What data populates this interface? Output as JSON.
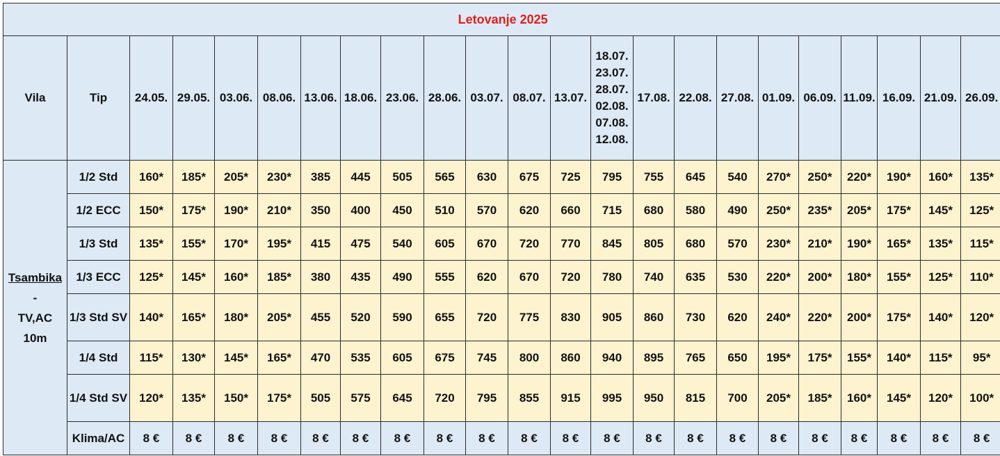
{
  "title": "Letovanje 2025",
  "headers": {
    "villa": "Vila",
    "type": "Tip",
    "dates": [
      [
        "24.05."
      ],
      [
        "29.05."
      ],
      [
        "03.06."
      ],
      [
        "08.06."
      ],
      [
        "13.06."
      ],
      [
        "18.06."
      ],
      [
        "23.06."
      ],
      [
        "28.06."
      ],
      [
        "03.07."
      ],
      [
        "08.07."
      ],
      [
        "13.07."
      ],
      [
        "18.07.",
        "23.07.",
        "28.07.",
        "02.08.",
        "07.08.",
        "12.08."
      ],
      [
        "17.08."
      ],
      [
        "22.08."
      ],
      [
        "27.08."
      ],
      [
        "01.09."
      ],
      [
        "06.09."
      ],
      [
        "11.09."
      ],
      [
        "16.09."
      ],
      [
        "21.09."
      ],
      [
        "26.09."
      ]
    ]
  },
  "villa": {
    "name": "Tsambika",
    "separator": "-",
    "amenities": "TV,AC",
    "distance": "10m"
  },
  "rows": [
    {
      "type": "1/2 Std",
      "prices": [
        "160*",
        "185*",
        "205*",
        "230*",
        "385",
        "445",
        "505",
        "565",
        "630",
        "675",
        "725",
        "795",
        "755",
        "645",
        "540",
        "270*",
        "250*",
        "220*",
        "190*",
        "160*",
        "135*"
      ]
    },
    {
      "type": "1/2 ECC",
      "prices": [
        "150*",
        "175*",
        "190*",
        "210*",
        "350",
        "400",
        "450",
        "510",
        "570",
        "620",
        "660",
        "715",
        "680",
        "580",
        "490",
        "250*",
        "235*",
        "205*",
        "175*",
        "145*",
        "125*"
      ]
    },
    {
      "type": "1/3 Std",
      "prices": [
        "135*",
        "155*",
        "170*",
        "195*",
        "415",
        "475",
        "540",
        "605",
        "670",
        "720",
        "770",
        "845",
        "805",
        "680",
        "570",
        "230*",
        "210*",
        "190*",
        "165*",
        "135*",
        "115*"
      ]
    },
    {
      "type": "1/3 ECC",
      "prices": [
        "125*",
        "145*",
        "160*",
        "185*",
        "380",
        "435",
        "490",
        "555",
        "620",
        "670",
        "720",
        "780",
        "740",
        "635",
        "530",
        "220*",
        "200*",
        "180*",
        "155*",
        "125*",
        "110*"
      ]
    },
    {
      "type": "1/3 Std SV",
      "prices": [
        "140*",
        "165*",
        "180*",
        "205*",
        "455",
        "520",
        "590",
        "655",
        "720",
        "775",
        "830",
        "905",
        "860",
        "730",
        "620",
        "240*",
        "220*",
        "200*",
        "175*",
        "140*",
        "120*"
      ]
    },
    {
      "type": "1/4 Std",
      "prices": [
        "115*",
        "130*",
        "145*",
        "165*",
        "470",
        "535",
        "605",
        "675",
        "745",
        "800",
        "860",
        "940",
        "895",
        "765",
        "650",
        "195*",
        "175*",
        "155*",
        "140*",
        "115*",
        "95*"
      ]
    },
    {
      "type": "1/4 Std SV",
      "prices": [
        "120*",
        "135*",
        "150*",
        "175*",
        "505",
        "575",
        "645",
        "720",
        "795",
        "855",
        "915",
        "995",
        "950",
        "815",
        "700",
        "205*",
        "185*",
        "160*",
        "145*",
        "120*",
        "100*"
      ]
    }
  ],
  "extra": {
    "label": "Klima/AC",
    "value": "8 €",
    "count": 21
  }
}
